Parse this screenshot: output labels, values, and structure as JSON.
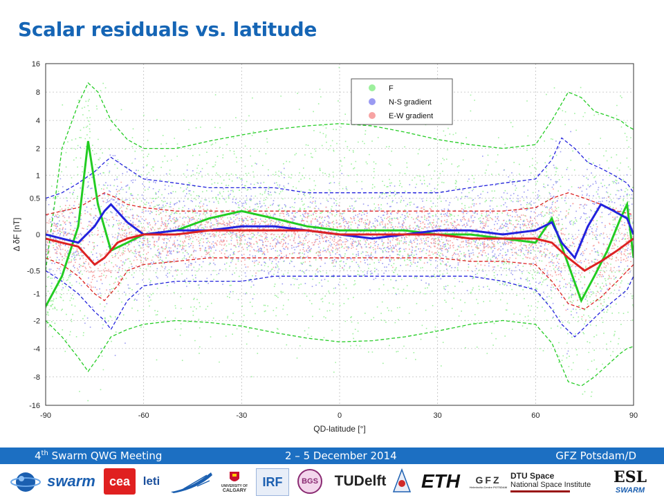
{
  "slide": {
    "title": "Scalar residuals vs. latitude"
  },
  "footer": {
    "meeting_prefix": "4",
    "meeting_sup": "th",
    "meeting_suffix": " Swarm QWG Meeting",
    "dates": "2 – 5 December 2014",
    "venue": "GFZ Potsdam/D"
  },
  "logos": {
    "swarm": "swarm",
    "cea": "cea",
    "leti": "leti",
    "calgary_1": "UNIVERSITY OF",
    "calgary_2": "CALGARY",
    "irf": "IRF",
    "bgs": "BGS",
    "tudelft": "TUDelft",
    "eth": "ETH",
    "gfz": "GFZ",
    "gfz_sub": "Helmholtz-Centre POTSDAM",
    "dtu_1": "DTU Space",
    "dtu_2": "National Space Institute",
    "esl": "ESL",
    "esl_sub": "SWARM"
  },
  "colors": {
    "title": "#1565b5",
    "footer_bar": "#1c6fc2",
    "F": "#22cc22",
    "NS": "#2222dd",
    "EW": "#dd2222",
    "F_scatter": "#9df09d",
    "NS_scatter": "#9a9af2",
    "EW_scatter": "#f7a3a3"
  },
  "chart_data": {
    "type": "scatter",
    "xlabel": "QD-latitude [°]",
    "ylabel": "Δ δF [nT]",
    "xlim": [
      -90,
      90
    ],
    "ylim": [
      -16,
      16
    ],
    "x_ticks": [
      "-90",
      "-60",
      "-30",
      "0",
      "30",
      "60",
      "90"
    ],
    "x_tick_values": [
      -90,
      -60,
      -30,
      0,
      30,
      60,
      90
    ],
    "y_ticks": [
      "-16",
      "-8",
      "-4",
      "-2",
      "-1",
      "-0.5",
      "0",
      "0.5",
      "1",
      "2",
      "4",
      "8",
      "16"
    ],
    "y_tick_values": [
      -16,
      -8,
      -4,
      -2,
      -1,
      -0.5,
      0,
      0.5,
      1,
      2,
      4,
      8,
      16
    ],
    "y_scale": "asinh",
    "grid": true,
    "legend_position": "top-center",
    "series": [
      {
        "name": "F",
        "x": [
          -90,
          -85,
          -80,
          -77,
          -74,
          -70,
          -65,
          -60,
          -50,
          -40,
          -30,
          -20,
          -10,
          0,
          10,
          20,
          30,
          40,
          50,
          60,
          65,
          70,
          74,
          78,
          82,
          86,
          88,
          90
        ],
        "median": [
          -1.4,
          -0.6,
          0.1,
          2.4,
          0.4,
          -0.2,
          -0.1,
          0,
          0.05,
          0.2,
          0.3,
          0.2,
          0.1,
          0.05,
          0.05,
          0.05,
          0,
          0,
          -0.05,
          -0.1,
          0.2,
          -0.4,
          -1.2,
          -0.6,
          -0.2,
          0.2,
          0.4,
          -0.3
        ],
        "upper": [
          -0.5,
          2,
          6,
          10,
          8,
          4,
          2.5,
          2,
          2,
          2.4,
          2.8,
          3.2,
          3.5,
          3.7,
          3.5,
          3,
          2.5,
          2.2,
          2.0,
          2.2,
          4,
          8,
          7,
          5,
          4.5,
          4,
          3.5,
          3.2
        ],
        "lower": [
          -2,
          -3,
          -5,
          -7,
          -5,
          -3,
          -2.5,
          -2.2,
          -2,
          -2.1,
          -2.3,
          -2.7,
          -3.1,
          -3.4,
          -3.3,
          -3,
          -2.6,
          -2.2,
          -2,
          -2.2,
          -3.5,
          -9,
          -10,
          -8,
          -6,
          -4.5,
          -4,
          -3.8
        ]
      },
      {
        "name": "N-S gradient",
        "x": [
          -90,
          -85,
          -80,
          -75,
          -72,
          -70,
          -65,
          -60,
          -50,
          -40,
          -30,
          -20,
          -10,
          0,
          10,
          20,
          30,
          40,
          50,
          60,
          65,
          68,
          72,
          76,
          80,
          84,
          88,
          90
        ],
        "median": [
          0,
          -0.05,
          -0.1,
          0.1,
          0.3,
          0.4,
          0.15,
          0,
          0.05,
          0.05,
          0.1,
          0.1,
          0.05,
          0,
          -0.05,
          0,
          0.05,
          0.05,
          0,
          0.05,
          0.15,
          -0.1,
          -0.3,
          0.1,
          0.4,
          0.3,
          0.2,
          0
        ],
        "upper": [
          0.5,
          0.6,
          0.8,
          1.1,
          1.4,
          1.6,
          1.2,
          0.9,
          0.8,
          0.7,
          0.7,
          0.7,
          0.6,
          0.6,
          0.6,
          0.6,
          0.6,
          0.7,
          0.8,
          0.9,
          1.5,
          2.6,
          2.0,
          1.4,
          1.2,
          1.0,
          0.8,
          0.6
        ],
        "lower": [
          -0.5,
          -0.7,
          -1.0,
          -1.6,
          -2.0,
          -2.5,
          -1.2,
          -0.8,
          -0.7,
          -0.7,
          -0.7,
          -0.6,
          -0.6,
          -0.6,
          -0.6,
          -0.6,
          -0.6,
          -0.6,
          -0.7,
          -0.9,
          -1.5,
          -2.2,
          -3.0,
          -2.2,
          -1.6,
          -1.2,
          -0.9,
          -0.6
        ]
      },
      {
        "name": "E-W gradient",
        "x": [
          -90,
          -85,
          -80,
          -75,
          -72,
          -68,
          -65,
          -60,
          -50,
          -40,
          -30,
          -20,
          -10,
          0,
          10,
          20,
          30,
          40,
          50,
          60,
          65,
          70,
          75,
          80,
          85,
          90
        ],
        "median": [
          -0.05,
          -0.1,
          -0.15,
          -0.4,
          -0.3,
          -0.1,
          -0.05,
          0,
          0,
          0.05,
          0.05,
          0.05,
          0.05,
          0,
          0,
          0,
          0,
          -0.05,
          -0.05,
          -0.05,
          -0.1,
          -0.3,
          -0.5,
          -0.35,
          -0.2,
          -0.05
        ],
        "upper": [
          0.25,
          0.3,
          0.35,
          0.5,
          0.6,
          0.5,
          0.4,
          0.35,
          0.3,
          0.3,
          0.3,
          0.3,
          0.3,
          0.3,
          0.3,
          0.3,
          0.3,
          0.3,
          0.3,
          0.35,
          0.5,
          0.6,
          0.5,
          0.4,
          0.3,
          0.25
        ],
        "lower": [
          -0.3,
          -0.4,
          -0.6,
          -1.0,
          -1.2,
          -0.8,
          -0.5,
          -0.4,
          -0.35,
          -0.3,
          -0.3,
          -0.3,
          -0.3,
          -0.3,
          -0.3,
          -0.3,
          -0.3,
          -0.35,
          -0.35,
          -0.4,
          -0.7,
          -1.3,
          -1.5,
          -1.1,
          -0.7,
          -0.4
        ]
      }
    ]
  }
}
